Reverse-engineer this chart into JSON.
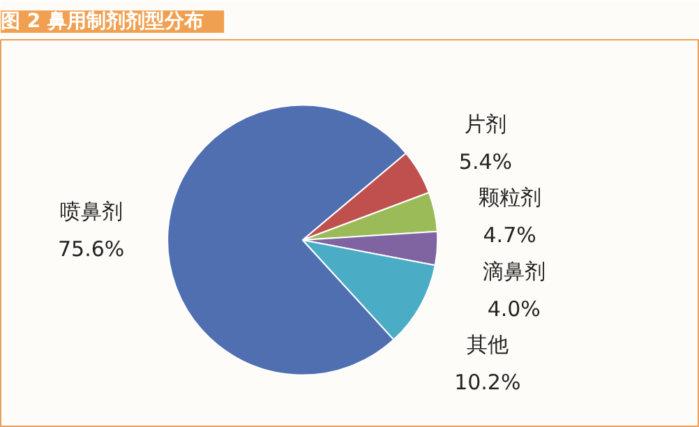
{
  "chart_data": {
    "type": "pie",
    "title": "图 2    鼻用制剂剂型分布",
    "categories": [
      "片剂",
      "颗粒剂",
      "滴鼻剂",
      "其他",
      "喷鼻剂"
    ],
    "values": [
      5.4,
      4.7,
      4.0,
      10.2,
      75.6
    ],
    "colors": [
      "#c0504d",
      "#9bbb59",
      "#8064a2",
      "#4bacc6",
      "#4f6fb0"
    ],
    "value_labels": [
      "5.4%",
      "4.7%",
      "4.0%",
      "10.2%",
      "75.6%"
    ]
  }
}
